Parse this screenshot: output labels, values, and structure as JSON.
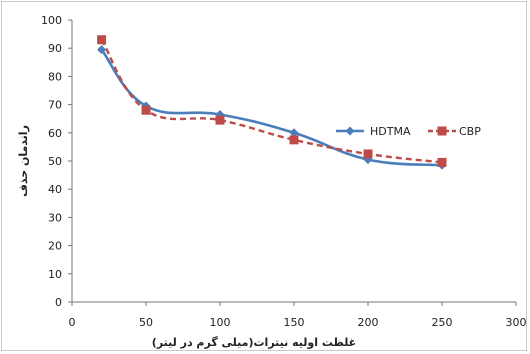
{
  "chart_data": {
    "type": "line",
    "title": "",
    "xlabel": "غلظت اولیه نیترات(میلی گرم در لیتر)",
    "ylabel": "راندمان حذف",
    "xlim": [
      0,
      300
    ],
    "ylim": [
      0,
      100
    ],
    "x_ticks": [
      "0",
      "50",
      "100",
      "150",
      "200",
      "250",
      "300"
    ],
    "y_ticks": [
      "0",
      "10",
      "20",
      "30",
      "40",
      "50",
      "60",
      "70",
      "80",
      "90",
      "100"
    ],
    "legend_position": "right",
    "grid": false,
    "x": [
      20,
      50,
      100,
      150,
      200,
      250
    ],
    "series": [
      {
        "name": "HDTMA",
        "values": [
          89.5,
          69.5,
          66.5,
          60,
          50.5,
          48.5
        ],
        "color": "#4a7ebb",
        "line_style": "solid",
        "marker": "diamond"
      },
      {
        "name": "CBP",
        "values": [
          93,
          68,
          64.5,
          57.5,
          52.5,
          49.5
        ],
        "color": "#be4b48",
        "line_style": "dashed",
        "marker": "square"
      }
    ]
  }
}
